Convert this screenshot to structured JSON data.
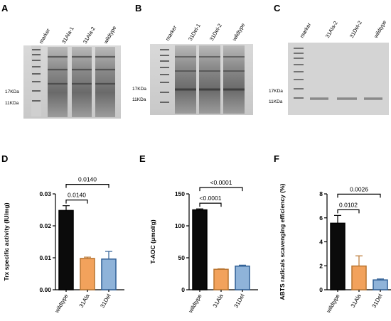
{
  "gels": [
    {
      "letter": "A",
      "lanes": [
        "marker",
        "31Ala-1",
        "31Ala-2",
        "wildtype"
      ],
      "markers": [
        "17KDa",
        "11KDa"
      ]
    },
    {
      "letter": "B",
      "lanes": [
        "marker",
        "31Del-1",
        "31Del-2",
        "wildtype"
      ],
      "markers": [
        "17KDa",
        "11KDa"
      ]
    },
    {
      "letter": "C",
      "lanes": [
        "marker",
        "31Ala-2",
        "31Del-2",
        "wildtype"
      ],
      "markers": [
        "17KDa",
        "11KDa"
      ]
    }
  ],
  "colors": {
    "wildtype": "#0b0b0b",
    "31Ala": "#f2a25c",
    "31Del": "#8fb3d9",
    "edge_wildtype": "#000000",
    "edge_31Ala": "#b9742f",
    "edge_31Del": "#2f5f95"
  },
  "chart_data": [
    {
      "letter": "D",
      "type": "bar",
      "categories": [
        "wildtype",
        "31Ala",
        "31Del"
      ],
      "values": [
        0.0248,
        0.0098,
        0.0096
      ],
      "errors": [
        0.0015,
        0.0004,
        0.0024
      ],
      "ylabel": "Trx specific activity (IU/mg)",
      "ylim": [
        0,
        0.03
      ],
      "yticks": [
        "0.00",
        "0.01",
        "0.02",
        "0.03"
      ],
      "brackets": [
        {
          "from": 0,
          "to": 1,
          "label": "0.0140"
        },
        {
          "from": 0,
          "to": 2,
          "label": "0.0140"
        }
      ]
    },
    {
      "letter": "E",
      "type": "bar",
      "categories": [
        "wildtype",
        "31Ala",
        "31Del"
      ],
      "values": [
        125,
        32,
        37
      ],
      "errors": [
        1.5,
        0.8,
        1.5
      ],
      "ylabel": "T-AOC (μmol/g)",
      "ylim": [
        0,
        150
      ],
      "yticks": [
        "0",
        "50",
        "100",
        "150"
      ],
      "brackets": [
        {
          "from": 0,
          "to": 1,
          "label": "<0.0001"
        },
        {
          "from": 0,
          "to": 2,
          "label": "<0.0001"
        }
      ]
    },
    {
      "letter": "F",
      "type": "bar",
      "categories": [
        "wildtype",
        "31Ala",
        "31Del"
      ],
      "values": [
        5.55,
        1.98,
        0.82
      ],
      "errors": [
        0.65,
        0.85,
        0.08
      ],
      "ylabel": "ABTS radicals scavenging efficiency (%)",
      "ylim": [
        0,
        8
      ],
      "yticks": [
        "0",
        "2",
        "4",
        "6",
        "8"
      ],
      "brackets": [
        {
          "from": 0,
          "to": 1,
          "label": "0.0102"
        },
        {
          "from": 0,
          "to": 2,
          "label": "0.0026"
        }
      ]
    }
  ]
}
